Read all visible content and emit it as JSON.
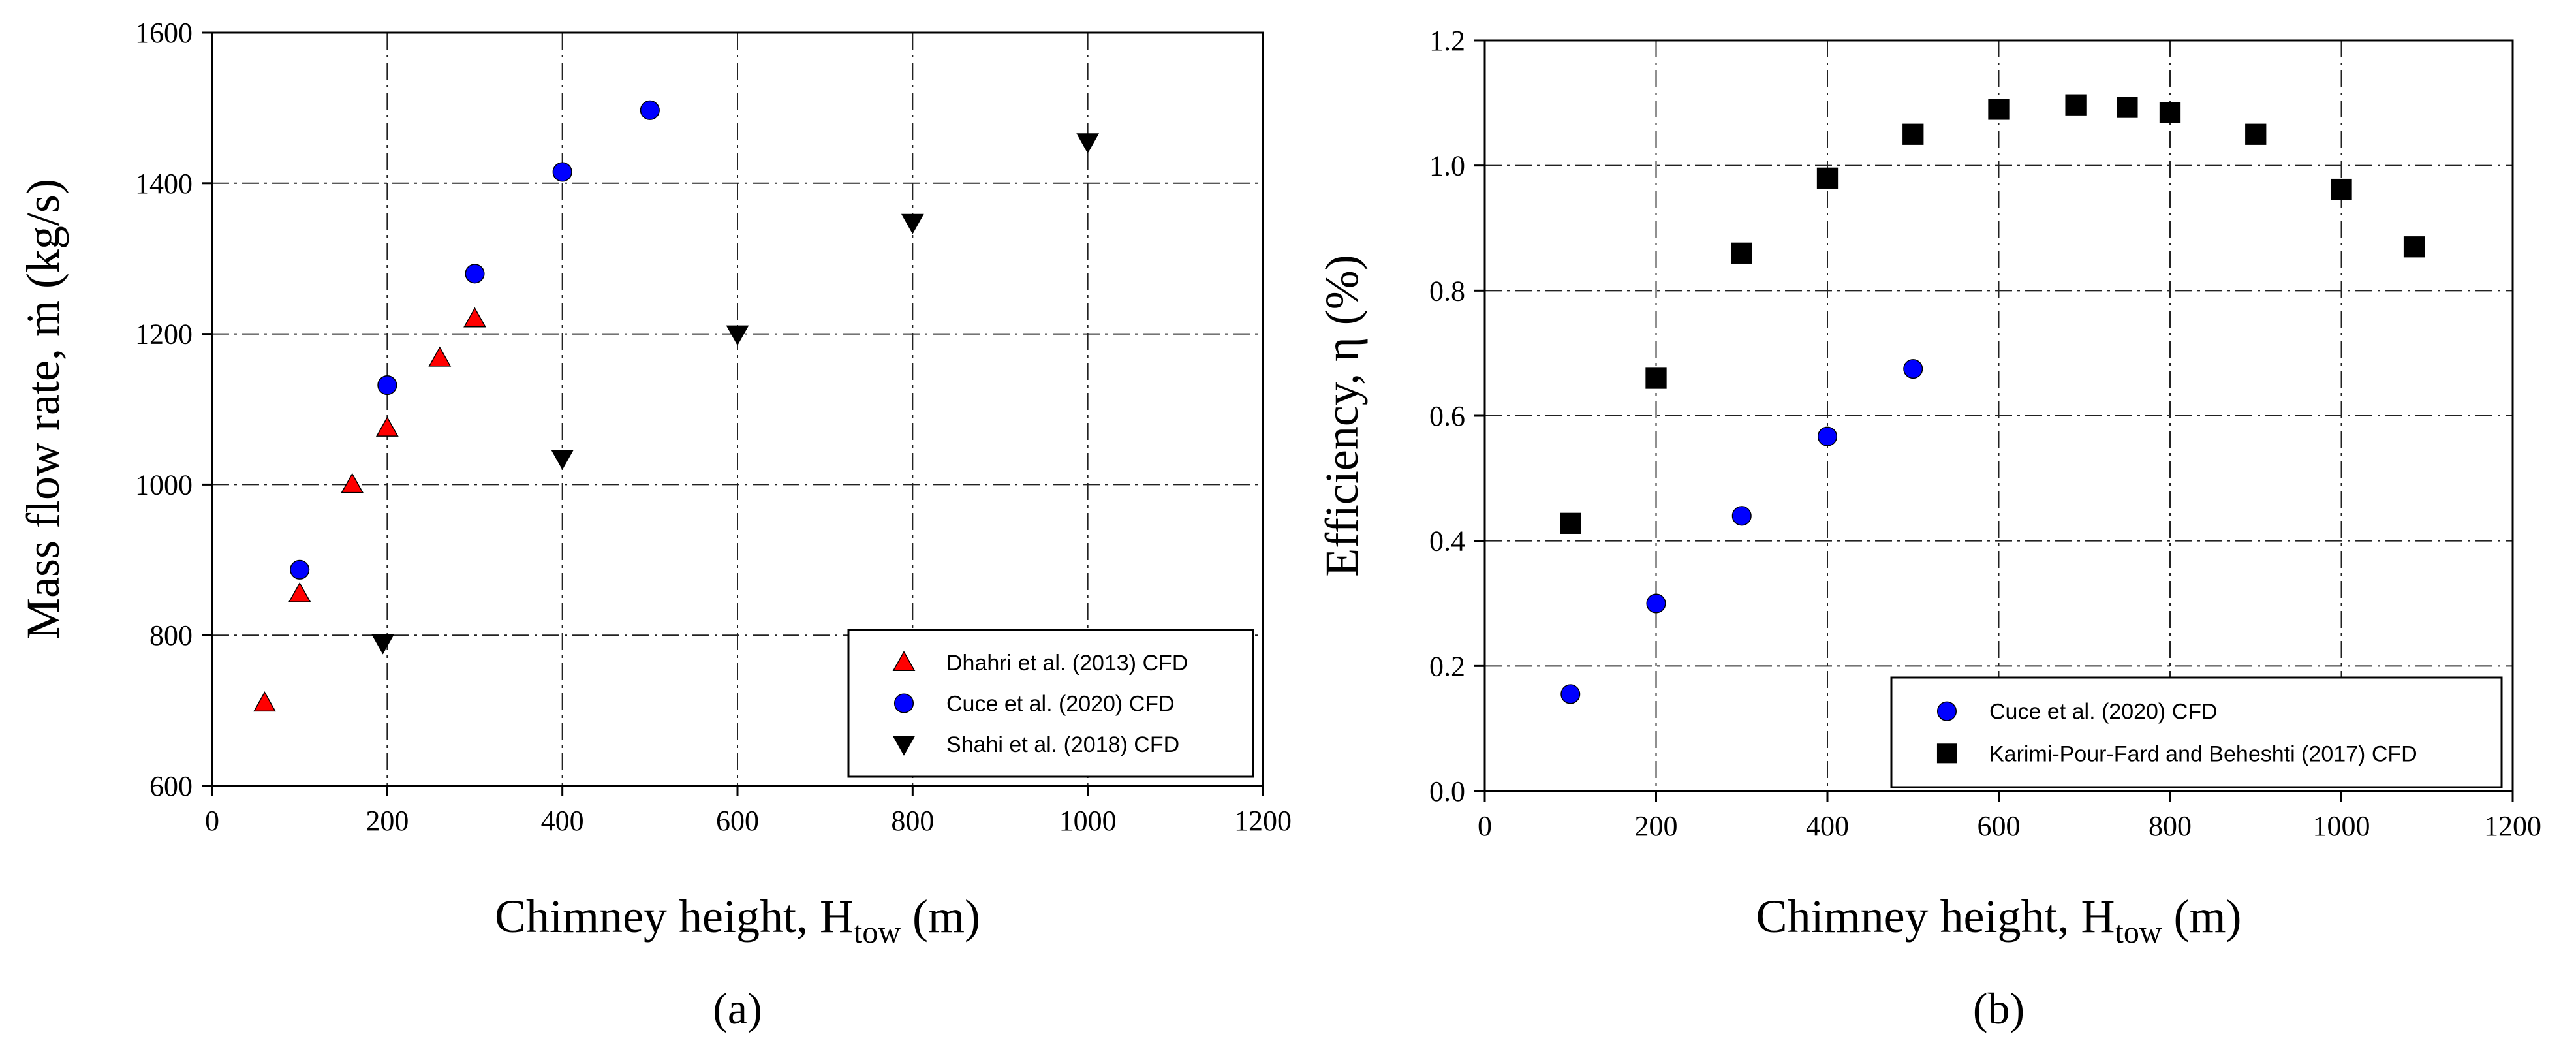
{
  "chart_data": [
    {
      "type": "scatter",
      "panel_label": "(a)",
      "xlabel": "Chimney height, ",
      "xlabel_sub": "tow",
      "xlabel_var": "H",
      "xlabel_unit": " (m)",
      "ylabel": "Mass flow rate, ṁ (kg/s)",
      "xlim": [
        0,
        1200
      ],
      "ylim": [
        600,
        1600
      ],
      "xticks": [
        0,
        200,
        400,
        600,
        800,
        1000,
        1200
      ],
      "yticks": [
        600,
        800,
        1000,
        1200,
        1400,
        1600
      ],
      "grid": true,
      "legend_position": "bottom-right",
      "series": [
        {
          "name": "Dhahri et al. (2013) CFD",
          "marker": "triangle-up",
          "color": "#ff0000",
          "points": [
            [
              60,
              710
            ],
            [
              100,
              855
            ],
            [
              160,
              1000
            ],
            [
              200,
              1075
            ],
            [
              260,
              1168
            ],
            [
              300,
              1220
            ]
          ]
        },
        {
          "name": "Cuce et al. (2020) CFD",
          "marker": "circle",
          "color": "#0000ff",
          "points": [
            [
              100,
              887
            ],
            [
              200,
              1132
            ],
            [
              300,
              1280
            ],
            [
              400,
              1415
            ],
            [
              500,
              1497
            ]
          ]
        },
        {
          "name": "Shahi et al. (2018) CFD",
          "marker": "triangle-down",
          "color": "#000000",
          "points": [
            [
              195,
              790
            ],
            [
              400,
              1035
            ],
            [
              600,
              1200
            ],
            [
              800,
              1348
            ],
            [
              1000,
              1455
            ]
          ]
        }
      ]
    },
    {
      "type": "scatter",
      "panel_label": "(b)",
      "xlabel": "Chimney height, ",
      "xlabel_sub": "tow",
      "xlabel_var": "H",
      "xlabel_unit": " (m)",
      "ylabel": "Efficiency, η (%)",
      "xlim": [
        0,
        1200
      ],
      "ylim": [
        0,
        1.2
      ],
      "xticks": [
        0,
        200,
        400,
        600,
        800,
        1000,
        1200
      ],
      "yticks": [
        "0.0",
        "0.2",
        "0.4",
        "0.6",
        "0.8",
        "1.0",
        "1.2"
      ],
      "grid": true,
      "legend_position": "bottom-right",
      "series": [
        {
          "name": "Cuce et al. (2020) CFD",
          "marker": "circle",
          "color": "#0000ff",
          "points": [
            [
              100,
              0.155
            ],
            [
              200,
              0.3
            ],
            [
              300,
              0.44
            ],
            [
              400,
              0.567
            ],
            [
              500,
              0.675
            ]
          ]
        },
        {
          "name": "Karimi-Pour-Fard and Beheshti (2017) CFD",
          "marker": "square",
          "color": "#000000",
          "points": [
            [
              100,
              0.428
            ],
            [
              200,
              0.66
            ],
            [
              300,
              0.86
            ],
            [
              400,
              0.98
            ],
            [
              500,
              1.05
            ],
            [
              600,
              1.09
            ],
            [
              690,
              1.097
            ],
            [
              750,
              1.093
            ],
            [
              800,
              1.085
            ],
            [
              900,
              1.05
            ],
            [
              1000,
              0.962
            ],
            [
              1085,
              0.87
            ]
          ]
        }
      ]
    }
  ]
}
